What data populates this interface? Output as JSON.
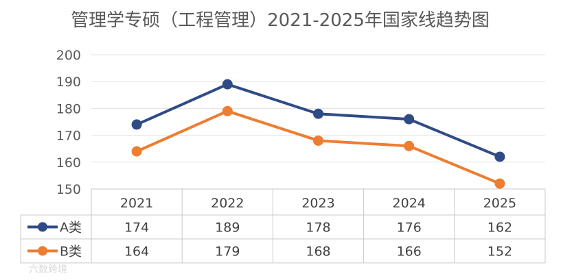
{
  "chart_data": {
    "type": "line",
    "title": "管理学专硕（工程管理）2021-2025年国家线趋势图",
    "categories": [
      "2021",
      "2022",
      "2023",
      "2024",
      "2025"
    ],
    "series": [
      {
        "name": "A类",
        "values": [
          174,
          189,
          178,
          176,
          162
        ],
        "color": "#2f4b86"
      },
      {
        "name": "B类",
        "values": [
          164,
          179,
          168,
          166,
          152
        ],
        "color": "#ed7d31"
      }
    ],
    "ylim": [
      150,
      200
    ],
    "yticks": [
      150,
      160,
      170,
      180,
      190,
      200
    ],
    "grid": true,
    "legend": "data-table"
  },
  "watermark": "六数跨境"
}
